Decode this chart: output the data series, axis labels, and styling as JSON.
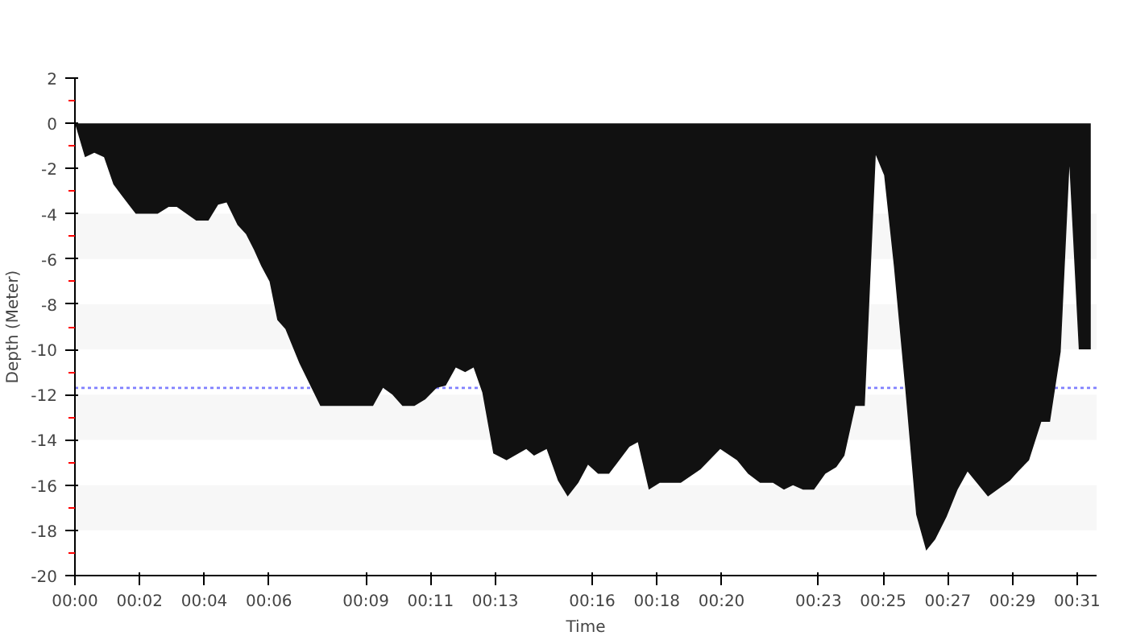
{
  "chart_data": {
    "type": "area",
    "xlabel": "Time",
    "ylabel": "Depth (Meter)",
    "x": [
      0,
      0.31,
      0.6,
      0.9,
      1.19,
      1.45,
      1.88,
      2.56,
      2.9,
      3.15,
      3.75,
      4.13,
      4.43,
      4.69,
      5.03,
      5.29,
      5.54,
      5.76,
      6.02,
      6.26,
      6.51,
      6.94,
      7.59,
      9.22,
      9.53,
      9.82,
      10.13,
      10.5,
      10.84,
      11.19,
      11.47,
      11.78,
      12.07,
      12.33,
      12.6,
      12.94,
      13.35,
      13.96,
      14.2,
      14.59,
      14.94,
      15.24,
      15.57,
      15.87,
      16.18,
      16.52,
      17.15,
      17.41,
      17.75,
      18.09,
      18.74,
      19.35,
      19.96,
      20.48,
      20.82,
      21.19,
      21.59,
      21.93,
      22.21,
      22.52,
      22.86,
      23.21,
      23.55,
      23.8,
      24.14,
      24.43,
      24.77,
      25.03,
      25.33,
      25.68,
      26.02,
      26.33,
      26.61,
      26.96,
      27.3,
      27.61,
      28.24,
      28.92,
      29.17,
      29.51,
      29.89,
      30.16,
      30.49,
      30.76,
      31.05,
      31.42,
      31.42
    ],
    "series": [
      {
        "color": "#111111",
        "values": [
          0,
          -1.5,
          -1.3,
          -1.5,
          -2.7,
          -3.2,
          -4.0,
          -4.0,
          -3.7,
          -3.7,
          -4.3,
          -4.3,
          -3.6,
          -3.5,
          -4.5,
          -4.9,
          -5.6,
          -6.3,
          -7.0,
          -8.7,
          -9.1,
          -10.6,
          -12.5,
          -12.5,
          -11.7,
          -12.0,
          -12.5,
          -12.5,
          -12.2,
          -11.7,
          -11.6,
          -10.8,
          -11.0,
          -10.8,
          -11.9,
          -14.6,
          -14.9,
          -14.4,
          -14.7,
          -14.4,
          -15.8,
          -16.5,
          -15.9,
          -15.1,
          -15.5,
          -15.5,
          -14.3,
          -14.1,
          -16.2,
          -15.9,
          -15.9,
          -15.3,
          -14.4,
          -14.9,
          -15.5,
          -15.9,
          -15.9,
          -16.2,
          -16.0,
          -16.2,
          -16.2,
          -15.5,
          -15.2,
          -14.7,
          -12.5,
          -12.5,
          -1.4,
          -2.3,
          -6.3,
          -11.7,
          -17.3,
          -18.9,
          -18.4,
          -17.4,
          -16.2,
          -15.4,
          -16.5,
          -15.8,
          -15.4,
          -14.9,
          -13.2,
          -13.2,
          -10.1,
          -1.9,
          -10.0,
          -10.0,
          0
        ]
      }
    ],
    "xlim": [
      0,
      31.6
    ],
    "ylim": [
      -20,
      2
    ],
    "xticks": [
      {
        "value": 0,
        "label": "00:00"
      },
      {
        "value": 2,
        "label": "00:02"
      },
      {
        "value": 4,
        "label": "00:04"
      },
      {
        "value": 6,
        "label": "00:06"
      },
      {
        "value": 9,
        "label": "00:09"
      },
      {
        "value": 11,
        "label": "00:11"
      },
      {
        "value": 13,
        "label": "00:13"
      },
      {
        "value": 16,
        "label": "00:16"
      },
      {
        "value": 18,
        "label": "00:18"
      },
      {
        "value": 20,
        "label": "00:20"
      },
      {
        "value": 23,
        "label": "00:23"
      },
      {
        "value": 25,
        "label": "00:25"
      },
      {
        "value": 27,
        "label": "00:27"
      },
      {
        "value": 29,
        "label": "00:29"
      },
      {
        "value": 31,
        "label": "00:31"
      }
    ],
    "yticks": [
      -20,
      -18,
      -16,
      -14,
      -12,
      -10,
      -8,
      -6,
      -4,
      -2,
      0,
      2
    ],
    "ref_lines": [
      {
        "axis": "y",
        "value": -11.7,
        "color": "#8080ff",
        "line_style": "dotted"
      }
    ],
    "bands": [
      {
        "axis": "y",
        "from": -6,
        "to": -4,
        "color": "#f7f7f7"
      },
      {
        "axis": "y",
        "from": -10,
        "to": -8,
        "color": "#f7f7f7"
      },
      {
        "axis": "y",
        "from": -14,
        "to": -12,
        "color": "#f7f7f7"
      },
      {
        "axis": "y",
        "from": -18,
        "to": -16,
        "color": "#f7f7f7"
      }
    ],
    "grid": false
  }
}
